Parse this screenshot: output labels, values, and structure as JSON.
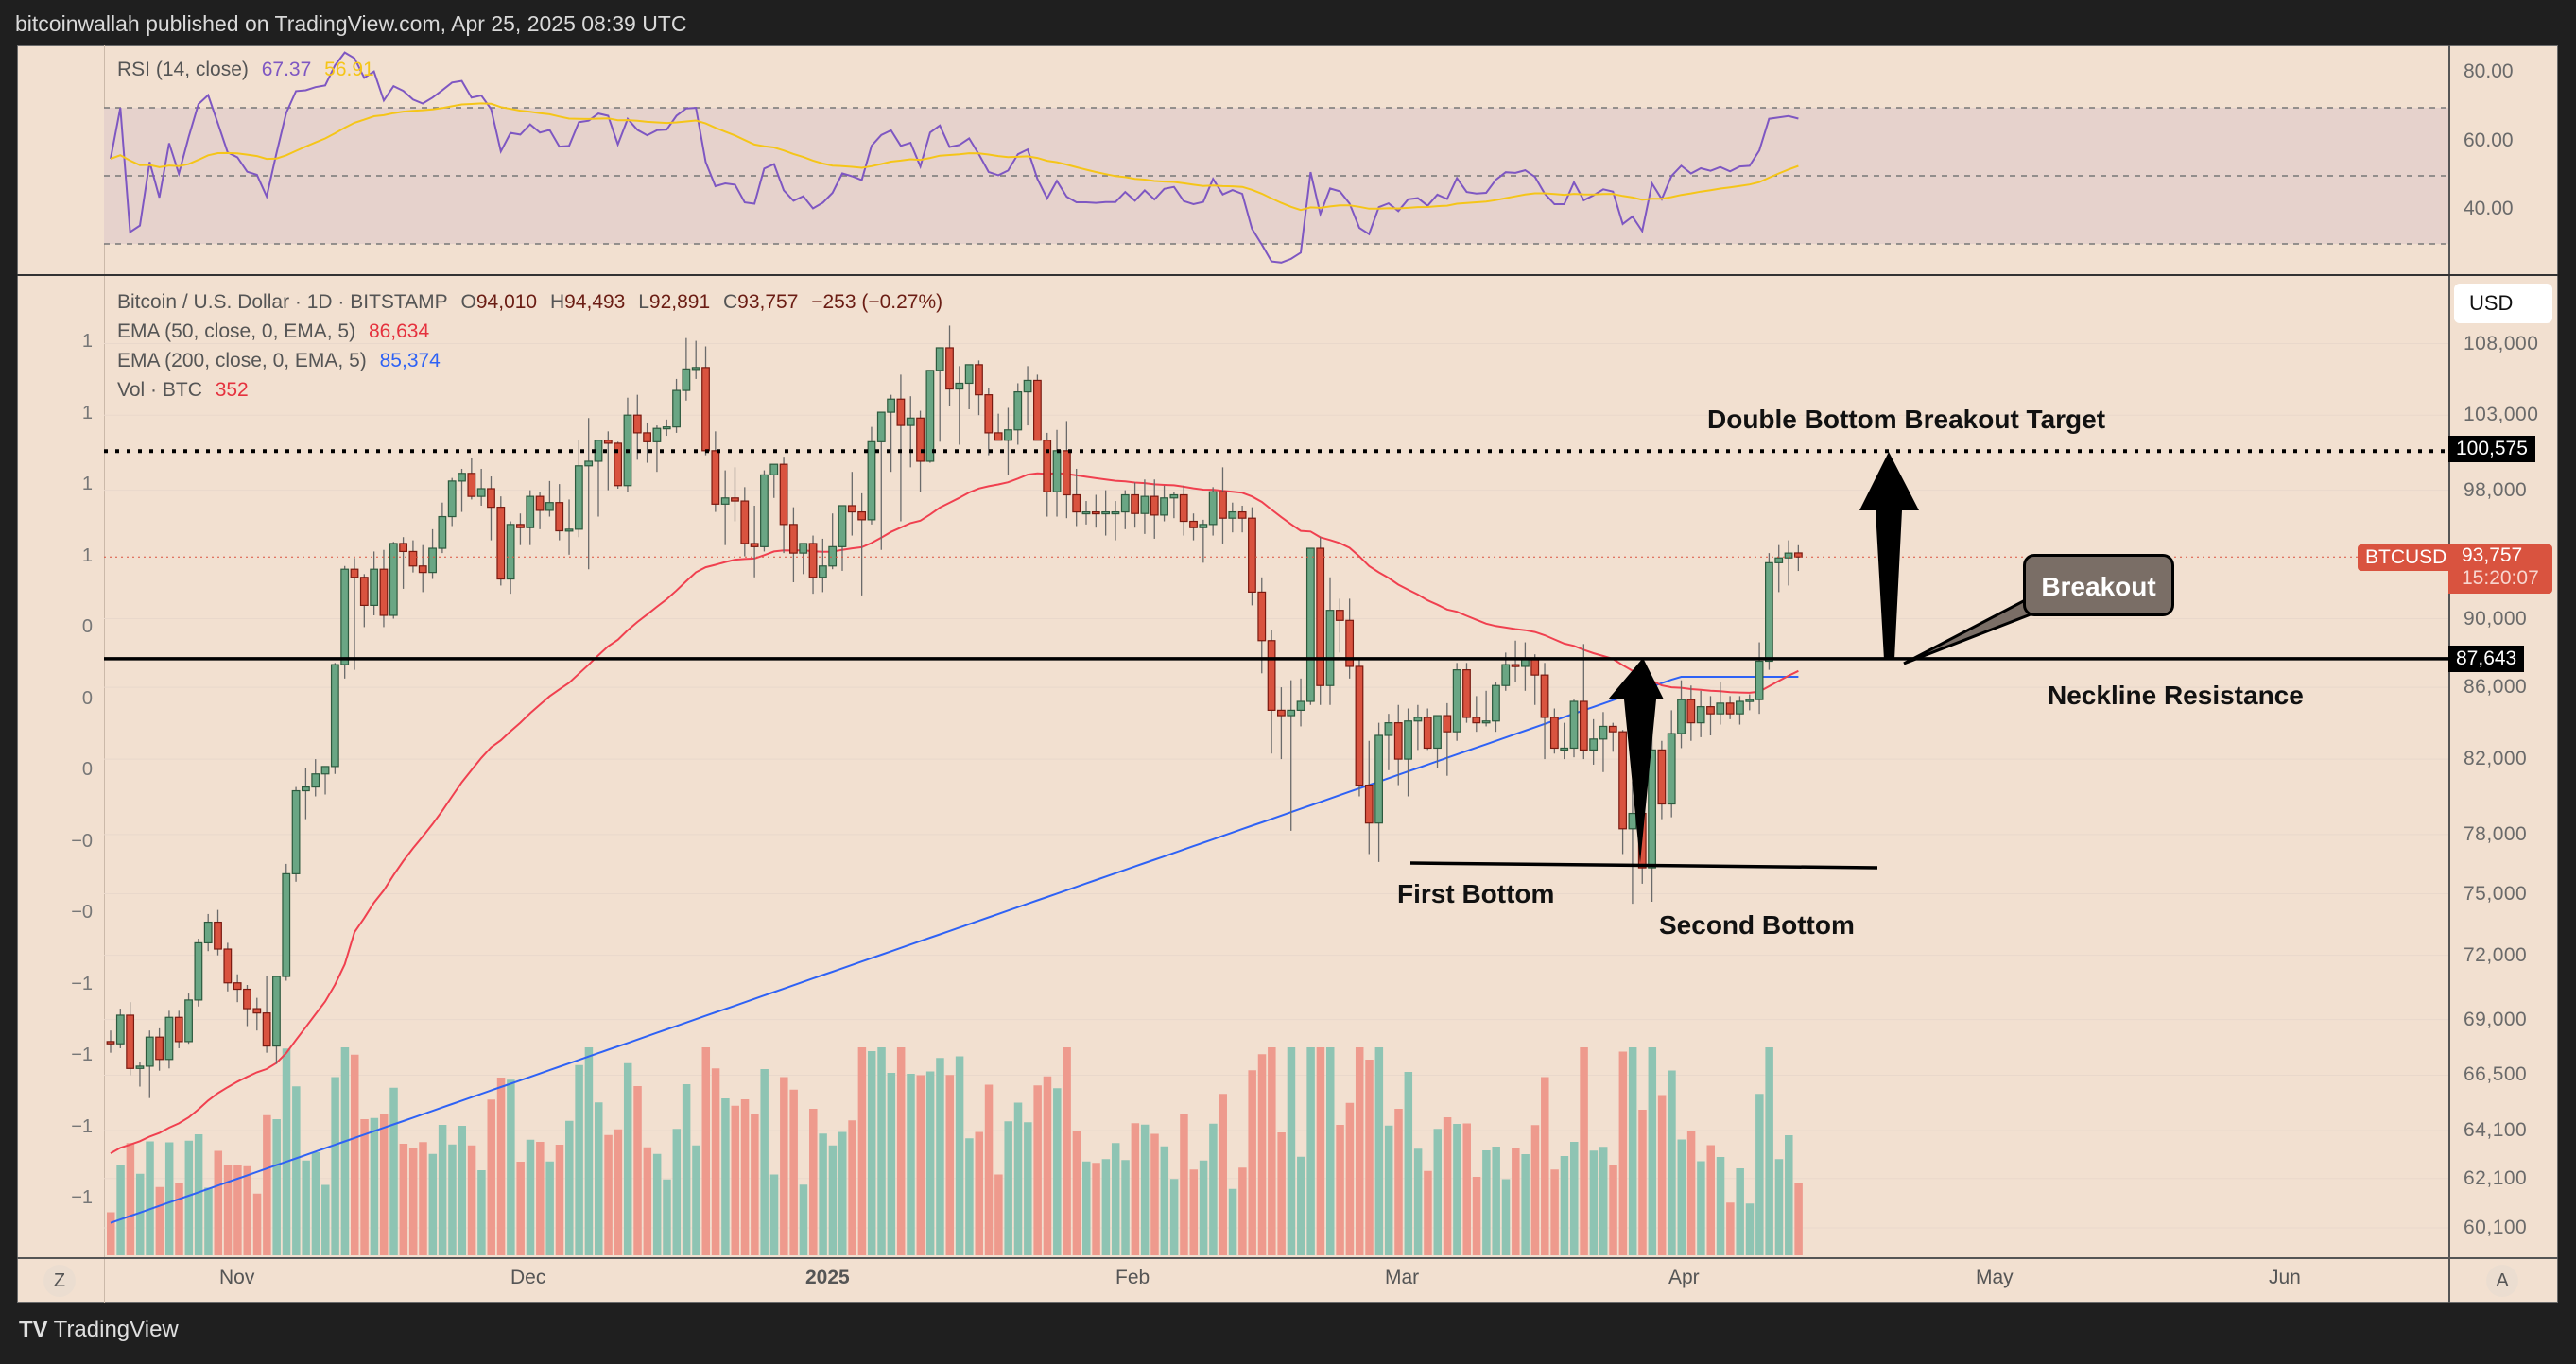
{
  "header": {
    "title": "bitcoinwallah published on TradingView.com, Apr 25, 2025 08:39 UTC"
  },
  "rsi": {
    "label": "RSI (14, close)",
    "value": "67.37",
    "ma_value": "56.91",
    "ticks": [
      "80.00",
      "60.00",
      "40.00"
    ],
    "colors": {
      "rsi": "#7e57c2",
      "ma": "#f5c518"
    }
  },
  "legend": {
    "symbol": "Bitcoin / U.S. Dollar · 1D · BITSTAMP",
    "open_label": "O",
    "open": "94,010",
    "high_label": "H",
    "high": "94,493",
    "low_label": "L",
    "low": "92,891",
    "close_label": "C",
    "close": "93,757",
    "change": "−253 (−0.27%)",
    "ema50_label": "EMA (50, close, 0, EMA, 5)",
    "ema50_value": "86,634",
    "ema200_label": "EMA (200, close, 0, EMA, 5)",
    "ema200_value": "85,374",
    "vol_label": "Vol · BTC",
    "vol_value": "352"
  },
  "price_axis": {
    "currency_button": "USD",
    "ticks": [
      "108,000",
      "103,000",
      "98,000",
      "90,000",
      "86,000",
      "82,000",
      "78,000",
      "75,000",
      "72,000",
      "69,000",
      "66,500",
      "64,100",
      "62,100",
      "60,100"
    ],
    "target_tag": "100,575",
    "neckline_tag": "87,643",
    "symbol_tag": "BTCUSD",
    "last_price_tag": "93,757",
    "countdown": "15:20:07"
  },
  "left_axis": {
    "ticks": [
      "1",
      "1",
      "1",
      "1",
      "0",
      "0",
      "0",
      "−0",
      "−0",
      "−1",
      "−1",
      "−1",
      "−1"
    ]
  },
  "time_axis": {
    "labels": [
      "Nov",
      "Dec",
      "2025",
      "Feb",
      "Mar",
      "Apr",
      "May",
      "Jun"
    ],
    "left_button": "Z",
    "right_button": "A"
  },
  "annotations": {
    "target": "Double Bottom Breakout Target",
    "breakout": "Breakout",
    "neckline": "Neckline Resistance",
    "first_bottom": "First Bottom",
    "second_bottom": "Second Bottom"
  },
  "footer": {
    "brand": "TradingView",
    "logo": "TV"
  },
  "colors": {
    "up": "#6aa684",
    "down": "#d9533f",
    "vol_up": "#8ec4b3",
    "vol_down": "#ee9a8d",
    "ema50": "#f0404f",
    "ema200": "#2e62f5",
    "background": "#f2e0d0"
  },
  "chart_data": {
    "type": "candlestick",
    "title": "Bitcoin / U.S. Dollar · 1D · BITSTAMP",
    "ylabel": "USD",
    "yscale": "log",
    "ylim": [
      58500,
      112000
    ],
    "levels": {
      "target": 100575,
      "neckline": 87643,
      "last": 93757
    },
    "x_start": "Oct 29, 2024",
    "x_end": "Apr 25, 2025",
    "candles": [
      [
        68000,
        68500,
        67500,
        67900
      ],
      [
        67900,
        69500,
        67700,
        69200
      ],
      [
        69200,
        69800,
        66500,
        66800
      ],
      [
        66800,
        67100,
        66000,
        66900
      ],
      [
        66900,
        68500,
        65500,
        68200
      ],
      [
        68200,
        68600,
        66700,
        67200
      ],
      [
        67200,
        69400,
        66800,
        69100
      ],
      [
        69100,
        69400,
        67700,
        68000
      ],
      [
        68000,
        70200,
        67900,
        69900
      ],
      [
        69900,
        72800,
        69600,
        72600
      ],
      [
        72600,
        74000,
        72200,
        73600
      ],
      [
        73600,
        74200,
        72000,
        72300
      ],
      [
        72300,
        72600,
        70300,
        70700
      ],
      [
        70700,
        71100,
        69800,
        70400
      ],
      [
        70400,
        70600,
        68700,
        69500
      ],
      [
        69500,
        70000,
        68500,
        69300
      ],
      [
        69300,
        71000,
        67500,
        67800
      ],
      [
        67800,
        71000,
        67000,
        71000
      ],
      [
        71000,
        76500,
        70800,
        76000
      ],
      [
        76000,
        80500,
        75600,
        80300
      ],
      [
        80300,
        81500,
        78800,
        80500
      ],
      [
        80500,
        82000,
        80000,
        81200
      ],
      [
        81200,
        81500,
        80100,
        81600
      ],
      [
        81600,
        87400,
        81200,
        87300
      ],
      [
        87300,
        93200,
        86500,
        93000
      ],
      [
        93000,
        93700,
        87000,
        92500
      ],
      [
        92500,
        92700,
        89500,
        90800
      ],
      [
        90800,
        94100,
        90200,
        93000
      ],
      [
        93000,
        94200,
        89500,
        90200
      ],
      [
        90200,
        94700,
        90000,
        94600
      ],
      [
        94600,
        95000,
        91800,
        94100
      ],
      [
        94100,
        94800,
        92800,
        93200
      ],
      [
        93200,
        94500,
        91600,
        92800
      ],
      [
        92800,
        95500,
        92400,
        94300
      ],
      [
        94300,
        97200,
        94000,
        96300
      ],
      [
        96300,
        98800,
        95700,
        98600
      ],
      [
        98600,
        99400,
        96600,
        99100
      ],
      [
        99100,
        100100,
        97400,
        97600
      ],
      [
        97600,
        99400,
        97000,
        98100
      ],
      [
        98100,
        98900,
        94800,
        96900
      ],
      [
        96900,
        97600,
        92000,
        92400
      ],
      [
        92400,
        96000,
        91500,
        95800
      ],
      [
        95800,
        96500,
        94500,
        95600
      ],
      [
        95600,
        98000,
        94500,
        97600
      ],
      [
        97600,
        97900,
        95500,
        96700
      ],
      [
        96700,
        98600,
        96300,
        97200
      ],
      [
        97200,
        98400,
        94800,
        95400
      ],
      [
        95400,
        97400,
        93900,
        95500
      ],
      [
        95500,
        101300,
        95000,
        99600
      ],
      [
        99600,
        102800,
        93000,
        99900
      ],
      [
        99900,
        100800,
        96300,
        101300
      ],
      [
        101300,
        101900,
        98000,
        101100
      ],
      [
        101100,
        101200,
        98100,
        98300
      ],
      [
        98300,
        104200,
        97900,
        103000
      ],
      [
        103000,
        104400,
        100000,
        101800
      ],
      [
        101800,
        102500,
        99800,
        101200
      ],
      [
        101200,
        102300,
        99200,
        102100
      ],
      [
        102100,
        102700,
        101600,
        102200
      ],
      [
        102200,
        105500,
        101800,
        104700
      ],
      [
        104700,
        108400,
        104000,
        106200
      ],
      [
        106200,
        108200,
        105500,
        106300
      ],
      [
        106300,
        107800,
        100300,
        100600
      ],
      [
        100600,
        101900,
        96600,
        97100
      ],
      [
        97100,
        99300,
        94500,
        97500
      ],
      [
        97500,
        99500,
        96000,
        97300
      ],
      [
        97300,
        98200,
        93800,
        94600
      ],
      [
        94600,
        97000,
        92500,
        94400
      ],
      [
        94400,
        99300,
        94100,
        99000
      ],
      [
        99000,
        99300,
        97500,
        99700
      ],
      [
        99700,
        100200,
        94000,
        95800
      ],
      [
        95800,
        96900,
        92200,
        94000
      ],
      [
        94000,
        94400,
        92700,
        94600
      ],
      [
        94600,
        95100,
        91500,
        92500
      ],
      [
        92500,
        94900,
        91600,
        93200
      ],
      [
        93200,
        96500,
        93000,
        94400
      ],
      [
        94400,
        95900,
        92900,
        97000
      ],
      [
        97000,
        99200,
        95100,
        96600
      ],
      [
        96600,
        97800,
        91400,
        96100
      ],
      [
        96100,
        102200,
        95800,
        101200
      ],
      [
        101200,
        103000,
        94200,
        103200
      ],
      [
        103200,
        104400,
        99200,
        104100
      ],
      [
        104100,
        105800,
        96000,
        102300
      ],
      [
        102300,
        104300,
        99500,
        102800
      ],
      [
        102800,
        103300,
        97900,
        99900
      ],
      [
        99900,
        106000,
        99800,
        106100
      ],
      [
        106100,
        106900,
        101200,
        107700
      ],
      [
        107700,
        109300,
        103600,
        104800
      ],
      [
        104800,
        106400,
        101000,
        105200
      ],
      [
        105200,
        106300,
        103400,
        106500
      ],
      [
        106500,
        106800,
        103000,
        104400
      ],
      [
        104400,
        104900,
        100300,
        101800
      ],
      [
        101800,
        103100,
        101300,
        101300
      ],
      [
        101300,
        103500,
        99000,
        102000
      ],
      [
        102000,
        105200,
        101000,
        104600
      ],
      [
        104600,
        106400,
        102300,
        105400
      ],
      [
        105400,
        105800,
        101300,
        101300
      ],
      [
        101300,
        101800,
        96300,
        97900
      ],
      [
        97900,
        102000,
        96300,
        100600
      ],
      [
        100600,
        102600,
        96200,
        97700
      ],
      [
        97700,
        99400,
        95700,
        96600
      ],
      [
        96600,
        97300,
        95800,
        96600
      ],
      [
        96600,
        97700,
        95600,
        96500
      ],
      [
        96500,
        98000,
        95100,
        96600
      ],
      [
        96600,
        97300,
        94800,
        96600
      ],
      [
        96600,
        98000,
        95500,
        97700
      ],
      [
        97700,
        98500,
        95600,
        96500
      ],
      [
        96500,
        98700,
        95200,
        97600
      ],
      [
        97600,
        98700,
        94900,
        96400
      ],
      [
        96400,
        98300,
        96000,
        97500
      ],
      [
        97500,
        97900,
        96200,
        97700
      ],
      [
        97700,
        98300,
        95100,
        96000
      ],
      [
        96000,
        96500,
        94800,
        95600
      ],
      [
        95600,
        96100,
        93400,
        95800
      ],
      [
        95800,
        98200,
        95100,
        97900
      ],
      [
        97900,
        99500,
        94600,
        96200
      ],
      [
        96200,
        97200,
        95300,
        96600
      ],
      [
        96600,
        97000,
        95300,
        96200
      ],
      [
        96200,
        96900,
        90800,
        91600
      ],
      [
        91600,
        92500,
        86800,
        88700
      ],
      [
        88700,
        89300,
        82300,
        84700
      ],
      [
        84700,
        86000,
        82000,
        84400
      ],
      [
        84400,
        86400,
        78200,
        84700
      ],
      [
        84700,
        86500,
        83800,
        85200
      ],
      [
        85200,
        94200,
        85000,
        94300
      ],
      [
        94300,
        95000,
        85000,
        86100
      ],
      [
        86100,
        92500,
        85000,
        90500
      ],
      [
        90500,
        91200,
        88000,
        89900
      ],
      [
        89900,
        91200,
        86500,
        87200
      ],
      [
        87200,
        87600,
        80000,
        80600
      ],
      [
        80600,
        83000,
        77000,
        78600
      ],
      [
        78600,
        84000,
        76600,
        83300
      ],
      [
        83300,
        84500,
        81400,
        84000
      ],
      [
        84000,
        85000,
        80600,
        82000
      ],
      [
        82000,
        84800,
        80000,
        84100
      ],
      [
        84100,
        85000,
        82500,
        84300
      ],
      [
        84300,
        84800,
        82500,
        82600
      ],
      [
        82600,
        84400,
        81500,
        84400
      ],
      [
        84400,
        85100,
        81100,
        83500
      ],
      [
        83500,
        87400,
        83000,
        87000
      ],
      [
        87000,
        87400,
        84000,
        84300
      ],
      [
        84300,
        85500,
        83500,
        84000
      ],
      [
        84000,
        85800,
        83800,
        84100
      ],
      [
        84100,
        86300,
        83500,
        86100
      ],
      [
        86100,
        88000,
        85800,
        87300
      ],
      [
        87300,
        88700,
        86300,
        87200
      ],
      [
        87200,
        88600,
        85800,
        87600
      ],
      [
        87600,
        87900,
        85000,
        86700
      ],
      [
        86700,
        87400,
        82000,
        84300
      ],
      [
        84300,
        84800,
        82300,
        82600
      ],
      [
        82600,
        84000,
        82000,
        82600
      ],
      [
        82600,
        85300,
        82100,
        85200
      ],
      [
        85200,
        88500,
        82000,
        82500
      ],
      [
        82500,
        84200,
        81700,
        83100
      ],
      [
        83100,
        84600,
        81300,
        83800
      ],
      [
        83800,
        84000,
        82400,
        83500
      ],
      [
        83500,
        83600,
        77000,
        78300
      ],
      [
        78300,
        80800,
        74500,
        79100
      ],
      [
        79100,
        79500,
        75500,
        76300
      ],
      [
        76300,
        83500,
        74600,
        82500
      ],
      [
        82500,
        83000,
        78800,
        79600
      ],
      [
        79600,
        84700,
        78900,
        83400
      ],
      [
        83400,
        86400,
        82600,
        85300
      ],
      [
        85300,
        86100,
        83000,
        84000
      ],
      [
        84000,
        85800,
        83200,
        84900
      ],
      [
        84900,
        85500,
        83300,
        84500
      ],
      [
        84500,
        86300,
        83900,
        85100
      ],
      [
        85100,
        85500,
        84200,
        84500
      ],
      [
        84500,
        85500,
        83900,
        85200
      ],
      [
        85200,
        85600,
        84700,
        85300
      ],
      [
        85300,
        88600,
        84500,
        87500
      ],
      [
        87500,
        94000,
        87000,
        93400
      ],
      [
        93400,
        94500,
        91600,
        93700
      ],
      [
        93700,
        94800,
        92000,
        94000
      ],
      [
        94010,
        94493,
        92891,
        93757
      ]
    ]
  }
}
